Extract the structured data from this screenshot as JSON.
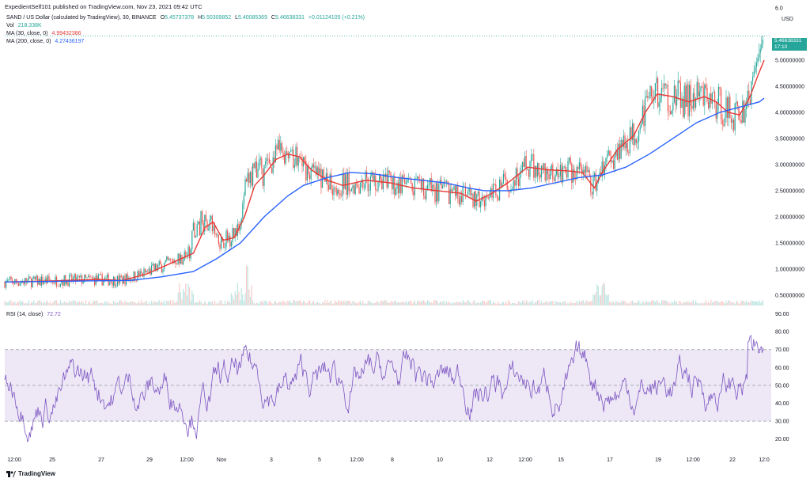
{
  "published": "ExpedientSelf101 published on TradingView.com, Nov 23, 2021 09:42 UTC",
  "header": {
    "symbol": "SAND / US Dollar (calculated by TradingView), 30, BINANCE",
    "open_label": "O",
    "open": "5.45737378",
    "high_label": "H",
    "high": "5.50309852",
    "low_label": "L",
    "low": "5.40085369",
    "close_label": "C",
    "close": "5.46638331",
    "change": "+0.01124105 (+0.21%)",
    "vol_label": "Vol",
    "vol": "218.338K",
    "ma30_label": "MA (30, close, 0)",
    "ma30": "4.99432386",
    "ma200_label": "MA (200, close, 0)",
    "ma200": "4.27436197",
    "rsi_label": "RSI (14, close)",
    "rsi": "72.72"
  },
  "currency": "USD",
  "price_tag": {
    "price": "5.46638331",
    "countdown": "17:10"
  },
  "colors": {
    "up": "#26a69a",
    "down": "#ef5350",
    "ma30": "#e53935",
    "ma200": "#2962ff",
    "rsi": "#7e57c2",
    "rsi_band": "#ede7f6"
  },
  "brand": "TradingView",
  "chart_data": [
    {
      "type": "candlestick",
      "x_ticks": [
        "12:00",
        "25",
        "27",
        "29",
        "12:00",
        "Nov",
        "3",
        "5",
        "12:00",
        "8",
        "10",
        "12",
        "12:00",
        "15",
        "17",
        "19",
        "12:00",
        "22",
        "12:0"
      ],
      "y_ticks": [
        "6.0",
        "5.00000000",
        "4.50000000",
        "4.00000000",
        "3.50000000",
        "3.00000000",
        "2.50000000",
        "2.00000000",
        "1.50000000",
        "1.00000000",
        "0.50000000"
      ],
      "ylim": [
        0.3,
        6.0
      ],
      "series": [
        {
          "name": "MA (30, close, 0)",
          "points": [
            [
              0,
              0.75
            ],
            [
              60,
              0.77
            ],
            [
              120,
              0.8
            ],
            [
              150,
              0.78
            ],
            [
              180,
              0.9
            ],
            [
              210,
              1.1
            ],
            [
              240,
              1.3
            ],
            [
              255,
              1.8
            ],
            [
              265,
              1.9
            ],
            [
              278,
              1.55
            ],
            [
              292,
              1.6
            ],
            [
              305,
              2.0
            ],
            [
              318,
              2.6
            ],
            [
              330,
              2.8
            ],
            [
              345,
              3.1
            ],
            [
              360,
              3.2
            ],
            [
              375,
              3.15
            ],
            [
              390,
              2.9
            ],
            [
              410,
              2.7
            ],
            [
              430,
              2.6
            ],
            [
              460,
              2.7
            ],
            [
              490,
              2.65
            ],
            [
              520,
              2.55
            ],
            [
              550,
              2.5
            ],
            [
              580,
              2.45
            ],
            [
              600,
              2.3
            ],
            [
              620,
              2.45
            ],
            [
              640,
              2.65
            ],
            [
              665,
              2.95
            ],
            [
              690,
              2.9
            ],
            [
              715,
              2.88
            ],
            [
              735,
              2.85
            ],
            [
              750,
              2.55
            ],
            [
              760,
              2.85
            ],
            [
              780,
              3.3
            ],
            [
              800,
              3.55
            ],
            [
              815,
              4.0
            ],
            [
              830,
              4.35
            ],
            [
              850,
              4.3
            ],
            [
              870,
              4.2
            ],
            [
              890,
              4.3
            ],
            [
              905,
              4.2
            ],
            [
              920,
              4.0
            ],
            [
              935,
              3.95
            ],
            [
              948,
              4.3
            ],
            [
              958,
              4.7
            ],
            [
              966,
              5.0
            ]
          ]
        },
        {
          "name": "MA (200, close, 0)",
          "points": [
            [
              0,
              0.75
            ],
            [
              100,
              0.77
            ],
            [
              160,
              0.78
            ],
            [
              200,
              0.85
            ],
            [
              240,
              0.95
            ],
            [
              270,
              1.2
            ],
            [
              300,
              1.5
            ],
            [
              330,
              2.0
            ],
            [
              360,
              2.4
            ],
            [
              380,
              2.6
            ],
            [
              410,
              2.75
            ],
            [
              440,
              2.85
            ],
            [
              470,
              2.82
            ],
            [
              500,
              2.75
            ],
            [
              530,
              2.7
            ],
            [
              560,
              2.65
            ],
            [
              590,
              2.55
            ],
            [
              610,
              2.5
            ],
            [
              640,
              2.5
            ],
            [
              670,
              2.55
            ],
            [
              700,
              2.65
            ],
            [
              730,
              2.75
            ],
            [
              760,
              2.8
            ],
            [
              790,
              2.95
            ],
            [
              820,
              3.2
            ],
            [
              850,
              3.5
            ],
            [
              880,
              3.8
            ],
            [
              910,
              4.0
            ],
            [
              940,
              4.12
            ],
            [
              960,
              4.2
            ],
            [
              966,
              4.27
            ]
          ]
        }
      ]
    },
    {
      "type": "line",
      "name": "RSI (14, close)",
      "y_ticks": [
        "90.00",
        "80.00",
        "70.00",
        "60.00",
        "50.00",
        "40.00",
        "30.00",
        "20.00"
      ],
      "ylim": [
        15,
        92
      ],
      "bands": {
        "upper": 70,
        "mid": 50,
        "lower": 30
      },
      "last": 72.72
    }
  ]
}
